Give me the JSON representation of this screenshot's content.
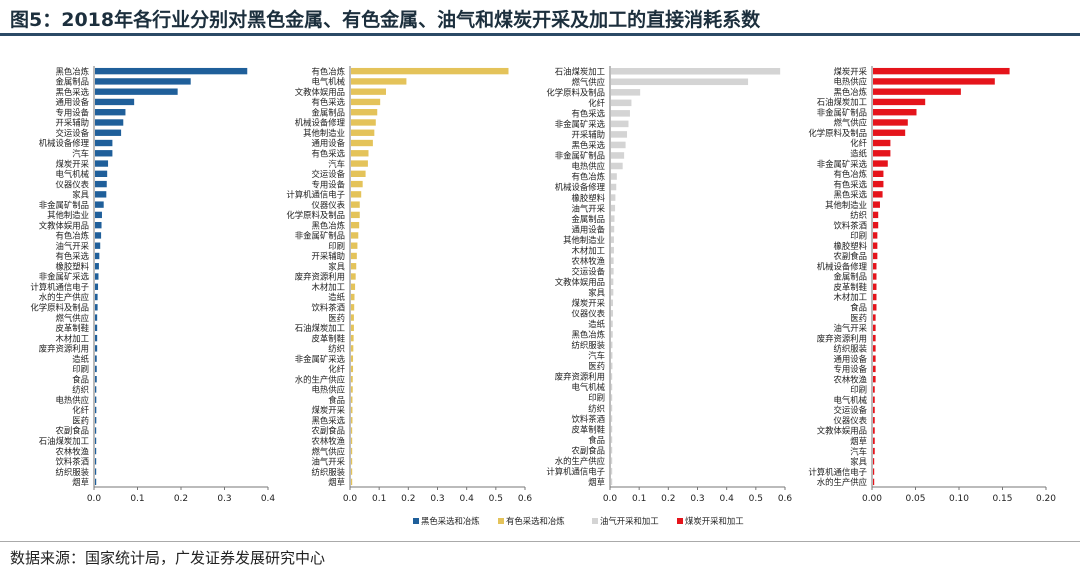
{
  "figure": {
    "title": "图5：2018年各行业分别对黑色金属、有色金属、油气和煤炭开采及加工的直接消耗系数",
    "source": "数据来源：国家统计局，广发证券发展研究中心"
  },
  "chart_data": [
    {
      "type": "bar",
      "orientation": "horizontal",
      "series_name": "黑色采选和冶炼",
      "color": "#1f5f9a",
      "xlim": [
        0,
        0.4
      ],
      "xticks": [
        "0.0",
        "0.1",
        "0.2",
        "0.3",
        "0.4"
      ],
      "categories": [
        "黑色冶炼",
        "金属制品",
        "黑色采选",
        "通用设备",
        "专用设备",
        "开采辅助",
        "交运设备",
        "机械设备修理",
        "汽车",
        "煤炭开采",
        "电气机械",
        "仪器仪表",
        "家具",
        "非金属矿制品",
        "其他制造业",
        "文教体娱用品",
        "有色冶炼",
        "油气开采",
        "有色采选",
        "橡胶塑料",
        "非金属矿采选",
        "计算机通信电子",
        "水的生产供应",
        "化学原料及制品",
        "燃气供应",
        "皮革制鞋",
        "木材加工",
        "废弃资源利用",
        "造纸",
        "印刷",
        "食品",
        "纺织",
        "电热供应",
        "化纤",
        "医药",
        "农副食品",
        "石油煤炭加工",
        "农林牧渔",
        "饮料茶酒",
        "纺织服装",
        "烟草"
      ],
      "values": [
        0.35,
        0.22,
        0.19,
        0.09,
        0.07,
        0.065,
        0.06,
        0.04,
        0.04,
        0.03,
        0.028,
        0.027,
        0.026,
        0.02,
        0.016,
        0.015,
        0.014,
        0.012,
        0.01,
        0.009,
        0.008,
        0.007,
        0.006,
        0.006,
        0.005,
        0.005,
        0.005,
        0.005,
        0.004,
        0.004,
        0.004,
        0.003,
        0.003,
        0.003,
        0.003,
        0.002,
        0.002,
        0.002,
        0.002,
        0.002,
        0.001
      ]
    },
    {
      "type": "bar",
      "orientation": "horizontal",
      "series_name": "有色采选和冶炼",
      "color": "#e4c35a",
      "xlim": [
        0,
        0.6
      ],
      "xticks": [
        "0.0",
        "0.1",
        "0.2",
        "0.3",
        "0.4",
        "0.5",
        "0.6"
      ],
      "categories": [
        "有色冶炼",
        "电气机械",
        "文教体娱用品",
        "有色采选",
        "金属制品",
        "机械设备修理",
        "其他制造业",
        "通用设备",
        "有色采选",
        "汽车",
        "交运设备",
        "专用设备",
        "计算机通信电子",
        "仪器仪表",
        "化学原料及制品",
        "黑色冶炼",
        "非金属矿制品",
        "印刷",
        "开采辅助",
        "家具",
        "废弃资源利用",
        "木材加工",
        "造纸",
        "饮料茶酒",
        "医药",
        "石油煤炭加工",
        "皮革制鞋",
        "纺织",
        "非金属矿采选",
        "化纤",
        "水的生产供应",
        "电热供应",
        "食品",
        "煤炭开采",
        "黑色采选",
        "农副食品",
        "农林牧渔",
        "燃气供应",
        "油气开采",
        "纺织服装",
        "烟草"
      ],
      "values": [
        0.54,
        0.19,
        0.12,
        0.1,
        0.09,
        0.085,
        0.08,
        0.075,
        0.06,
        0.058,
        0.05,
        0.04,
        0.035,
        0.03,
        0.03,
        0.028,
        0.025,
        0.022,
        0.02,
        0.018,
        0.016,
        0.014,
        0.012,
        0.011,
        0.01,
        0.01,
        0.009,
        0.008,
        0.007,
        0.007,
        0.006,
        0.006,
        0.005,
        0.005,
        0.005,
        0.004,
        0.004,
        0.003,
        0.003,
        0.003,
        0.002
      ]
    },
    {
      "type": "bar",
      "orientation": "horizontal",
      "series_name": "油气开采和加工",
      "color": "#d4d4d4",
      "xlim": [
        0,
        0.6
      ],
      "xticks": [
        "0.0",
        "0.1",
        "0.2",
        "0.3",
        "0.4",
        "0.5",
        "0.6"
      ],
      "categories": [
        "石油煤炭加工",
        "燃气供应",
        "化学原料及制品",
        "化纤",
        "有色采选",
        "非金属矿采选",
        "开采辅助",
        "黑色采选",
        "非金属矿制品",
        "电热供应",
        "有色冶炼",
        "机械设备修理",
        "橡胶塑料",
        "油气开采",
        "金属制品",
        "通用设备",
        "其他制造业",
        "木材加工",
        "农林牧渔",
        "交运设备",
        "文教体娱用品",
        "家具",
        "煤炭开采",
        "仪器仪表",
        "造纸",
        "黑色冶炼",
        "纺织服装",
        "汽车",
        "医药",
        "废弃资源利用",
        "电气机械",
        "印刷",
        "纺织",
        "饮料茶酒",
        "皮革制鞋",
        "食品",
        "农副食品",
        "水的生产供应",
        "计算机通信电子",
        "烟草"
      ],
      "values": [
        0.58,
        0.47,
        0.1,
        0.07,
        0.065,
        0.06,
        0.055,
        0.05,
        0.045,
        0.04,
        0.02,
        0.018,
        0.015,
        0.014,
        0.012,
        0.011,
        0.01,
        0.01,
        0.009,
        0.009,
        0.008,
        0.008,
        0.007,
        0.007,
        0.006,
        0.006,
        0.005,
        0.005,
        0.005,
        0.004,
        0.004,
        0.004,
        0.003,
        0.003,
        0.003,
        0.003,
        0.002,
        0.002,
        0.002,
        0.001
      ]
    },
    {
      "type": "bar",
      "orientation": "horizontal",
      "series_name": "煤炭开采和加工",
      "color": "#e5141b",
      "xlim": [
        0,
        0.2
      ],
      "xticks": [
        "0.00",
        "0.05",
        "0.10",
        "0.15",
        "0.20"
      ],
      "categories": [
        "煤炭开采",
        "电热供应",
        "黑色冶炼",
        "石油煤炭加工",
        "非金属矿制品",
        "燃气供应",
        "化学原料及制品",
        "化纤",
        "造纸",
        "非金属矿采选",
        "有色冶炼",
        "有色采选",
        "黑色采选",
        "其他制造业",
        "纺织",
        "饮料茶酒",
        "印刷",
        "橡胶塑料",
        "农副食品",
        "机械设备修理",
        "金属制品",
        "皮革制鞋",
        "木材加工",
        "食品",
        "医药",
        "油气开采",
        "废弃资源利用",
        "纺织服装",
        "通用设备",
        "专用设备",
        "农林牧渔",
        "印刷",
        "电气机械",
        "交运设备",
        "仪器仪表",
        "文教体娱用品",
        "烟草",
        "汽车",
        "家具",
        "计算机通信电子",
        "水的生产供应"
      ],
      "values": [
        0.157,
        0.14,
        0.101,
        0.06,
        0.05,
        0.04,
        0.037,
        0.02,
        0.02,
        0.017,
        0.012,
        0.012,
        0.011,
        0.008,
        0.006,
        0.006,
        0.005,
        0.005,
        0.005,
        0.004,
        0.004,
        0.004,
        0.004,
        0.004,
        0.003,
        0.003,
        0.003,
        0.003,
        0.003,
        0.003,
        0.003,
        0.002,
        0.002,
        0.002,
        0.002,
        0.002,
        0.002,
        0.002,
        0.001,
        0.001,
        0.001
      ]
    }
  ]
}
